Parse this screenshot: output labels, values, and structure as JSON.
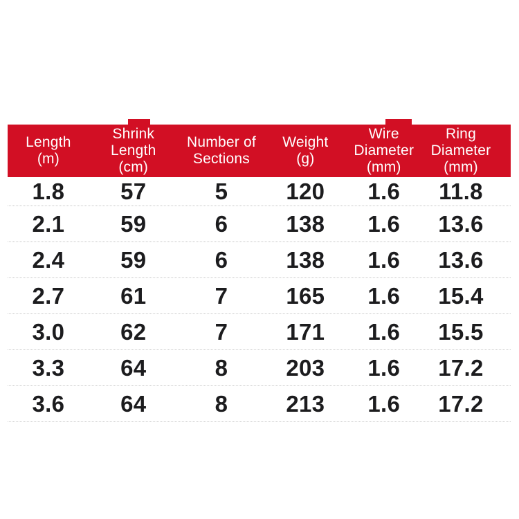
{
  "colors": {
    "page_bg": "#ffffff",
    "header_bg": "#d20f24",
    "header_text": "#ffffff",
    "body_text": "#1c1c1e",
    "divider": "#c6c6c6"
  },
  "chart_data": {
    "type": "table",
    "title": "",
    "columns": [
      {
        "id": "length_m",
        "label": "Length\n(m)"
      },
      {
        "id": "shrink_length_cm",
        "label": "Shrink\nLength\n(cm)"
      },
      {
        "id": "number_of_sections",
        "label": "Number of\nSections"
      },
      {
        "id": "weight_g",
        "label": "Weight\n(g)"
      },
      {
        "id": "wire_diameter_mm",
        "label": "Wire\nDiameter\n(mm)"
      },
      {
        "id": "ring_diameter_mm",
        "label": "Ring\nDiameter\n(mm)"
      }
    ],
    "rows": [
      [
        "1.8",
        "57",
        "5",
        "120",
        "1.6",
        "11.8"
      ],
      [
        "2.1",
        "59",
        "6",
        "138",
        "1.6",
        "13.6"
      ],
      [
        "2.4",
        "59",
        "6",
        "138",
        "1.6",
        "13.6"
      ],
      [
        "2.7",
        "61",
        "7",
        "165",
        "1.6",
        "15.4"
      ],
      [
        "3.0",
        "62",
        "7",
        "171",
        "1.6",
        "15.5"
      ],
      [
        "3.3",
        "64",
        "8",
        "203",
        "1.6",
        "17.2"
      ],
      [
        "3.6",
        "64",
        "8",
        "213",
        "1.6",
        "17.2"
      ]
    ]
  }
}
